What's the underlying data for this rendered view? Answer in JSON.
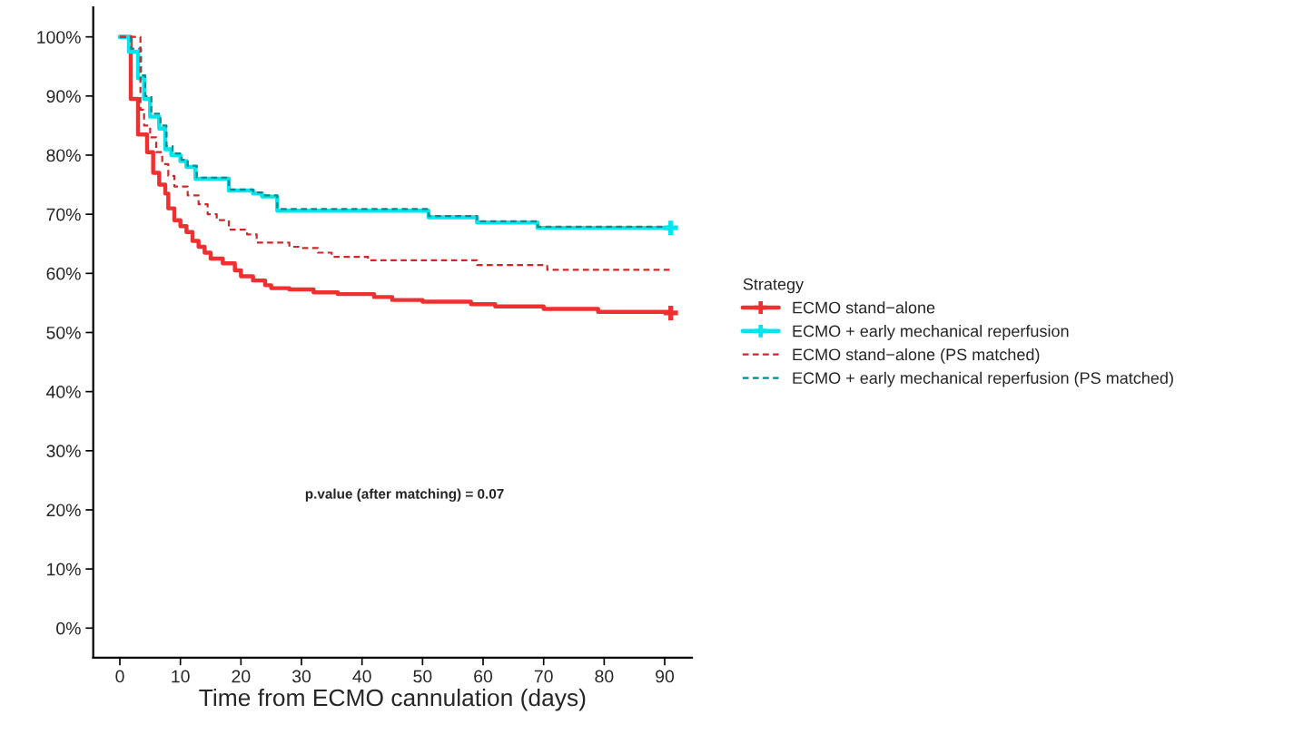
{
  "chart_data": {
    "type": "step",
    "xlabel": "Time from ECMO cannulation (days)",
    "legend_title": "Strategy",
    "legend": "right",
    "grid": false,
    "annotations": [
      "p.value (after matching) = 0.07"
    ],
    "xlim": [
      -4.4,
      94.5
    ],
    "xticks": [
      0,
      10,
      20,
      30,
      40,
      50,
      60,
      70,
      80,
      90
    ],
    "ylim": [
      -5,
      105
    ],
    "yticks": [
      {
        "value": 0,
        "label": "0%"
      },
      {
        "value": 10,
        "label": "10%"
      },
      {
        "value": 20,
        "label": "20%"
      },
      {
        "value": 30,
        "label": "30%"
      },
      {
        "value": 40,
        "label": "40%"
      },
      {
        "value": 50,
        "label": "50%"
      },
      {
        "value": 60,
        "label": "60%"
      },
      {
        "value": 70,
        "label": "70%"
      },
      {
        "value": 80,
        "label": "80%"
      },
      {
        "value": 90,
        "label": "90%"
      },
      {
        "value": 100,
        "label": "100%"
      }
    ],
    "series": [
      {
        "name": "ECMO stand−alone",
        "color": "#f03030",
        "line_style": "solid",
        "x": [
          0,
          1.8,
          3,
          4.5,
          5.5,
          6.5,
          7.5,
          8,
          9,
          10,
          11,
          12,
          13,
          14,
          15,
          17,
          19,
          20,
          22,
          24,
          25,
          28,
          32,
          36,
          42,
          45,
          50,
          58,
          62,
          70,
          79,
          91
        ],
        "values": [
          100,
          89.5,
          83.5,
          80.5,
          77,
          75,
          73.5,
          71,
          69,
          68,
          67,
          65.5,
          64.5,
          63.5,
          62.5,
          61.7,
          60.5,
          59.5,
          58.8,
          58,
          57.5,
          57.3,
          56.8,
          56.5,
          56,
          55.5,
          55.2,
          54.8,
          54.4,
          54,
          53.5,
          53.3
        ]
      },
      {
        "name": "ECMO + early mechanical reperfusion",
        "color": "#00e5ee",
        "line_style": "solid",
        "x": [
          0,
          1.5,
          3,
          4,
          5,
          6.5,
          7.5,
          8.5,
          10,
          11,
          12.5,
          18,
          22,
          23.5,
          26,
          51,
          59,
          69,
          91
        ],
        "values": [
          100,
          97.5,
          93,
          89.5,
          86.5,
          84.5,
          81,
          80,
          79,
          78,
          76,
          74,
          73.5,
          73,
          70.6,
          69.5,
          68.6,
          67.7,
          67.7
        ]
      },
      {
        "name": "ECMO stand−alone (PS matched)",
        "color": "#d02828",
        "line_style": "dashed",
        "x": [
          0,
          3.4,
          4,
          5,
          6,
          7,
          8,
          9,
          11.2,
          13,
          14.5,
          16,
          18,
          21,
          22.6,
          28,
          30,
          32.7,
          35,
          41,
          59,
          70.6,
          91
        ],
        "values": [
          100,
          87.7,
          85,
          83,
          80.5,
          78.5,
          76.5,
          74.7,
          73.2,
          71.7,
          70,
          69,
          67.4,
          66.6,
          65.2,
          64.5,
          64.3,
          63.5,
          62.8,
          62.2,
          61.4,
          60.6,
          60.6
        ]
      },
      {
        "name": "ECMO + early mechanical reperfusion (PS matched)",
        "color": "#008b8b",
        "line_style": "dashed",
        "x": [
          0,
          1.8,
          3.5,
          4.2,
          5.2,
          6.7,
          7.7,
          8.7,
          10.2,
          11.2,
          12.7,
          18,
          22,
          23.5,
          26,
          51,
          59,
          69,
          91
        ],
        "values": [
          100,
          98,
          93.5,
          90,
          87,
          85,
          81.5,
          80.3,
          79.2,
          78.2,
          76.2,
          74.2,
          73.7,
          73.2,
          70.9,
          69.7,
          68.8,
          67.9,
          67.9
        ]
      },
      {
        "type": "scatter",
        "color": "#f03030",
        "marker": "cross",
        "x": [
          91
        ],
        "values": [
          53.3
        ]
      },
      {
        "type": "scatter",
        "color": "#00e5ee",
        "marker": "cross",
        "x": [
          91
        ],
        "values": [
          67.7
        ]
      }
    ]
  }
}
